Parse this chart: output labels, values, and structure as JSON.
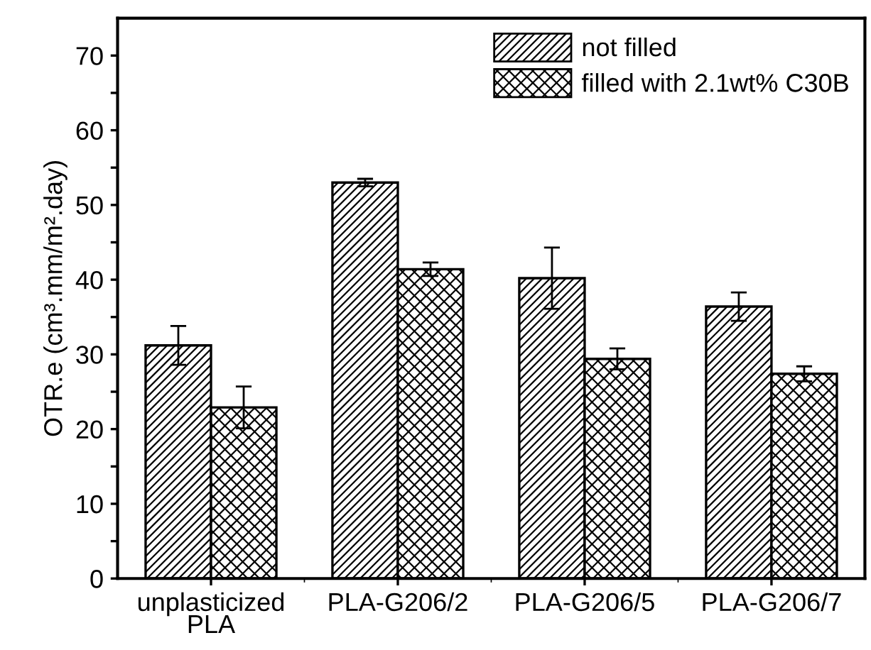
{
  "chart_data": {
    "type": "bar",
    "ylabel": "OTR.e (cm³.mm/m².day)",
    "categories": [
      "unplasticized\nPLA",
      "PLA-G206/2",
      "PLA-G206/5",
      "PLA-G206/7"
    ],
    "series": [
      {
        "name": "not filled",
        "color": "#000000",
        "values": [
          31.2,
          53.0,
          40.2,
          36.4
        ],
        "errors": [
          2.6,
          0.5,
          4.1,
          1.9
        ]
      },
      {
        "name": "filled with 2.1wt% C30B",
        "color": "#000000",
        "values": [
          22.9,
          41.4,
          29.4,
          27.4
        ],
        "errors": [
          2.8,
          0.9,
          1.4,
          1.0
        ]
      }
    ],
    "ylim": [
      0,
      75
    ],
    "yticks": [
      0,
      {
        "value": 5,
        "label": null
      },
      10,
      {
        "value": 15,
        "label": null
      },
      20,
      {
        "value": 25,
        "label": null
      },
      30,
      {
        "value": 35,
        "label": null
      },
      40,
      {
        "value": 45,
        "label": null
      },
      50,
      {
        "value": 55,
        "label": null
      },
      60,
      {
        "value": 65,
        "label": null
      },
      70
    ],
    "legend": "top right",
    "grid": false
  }
}
